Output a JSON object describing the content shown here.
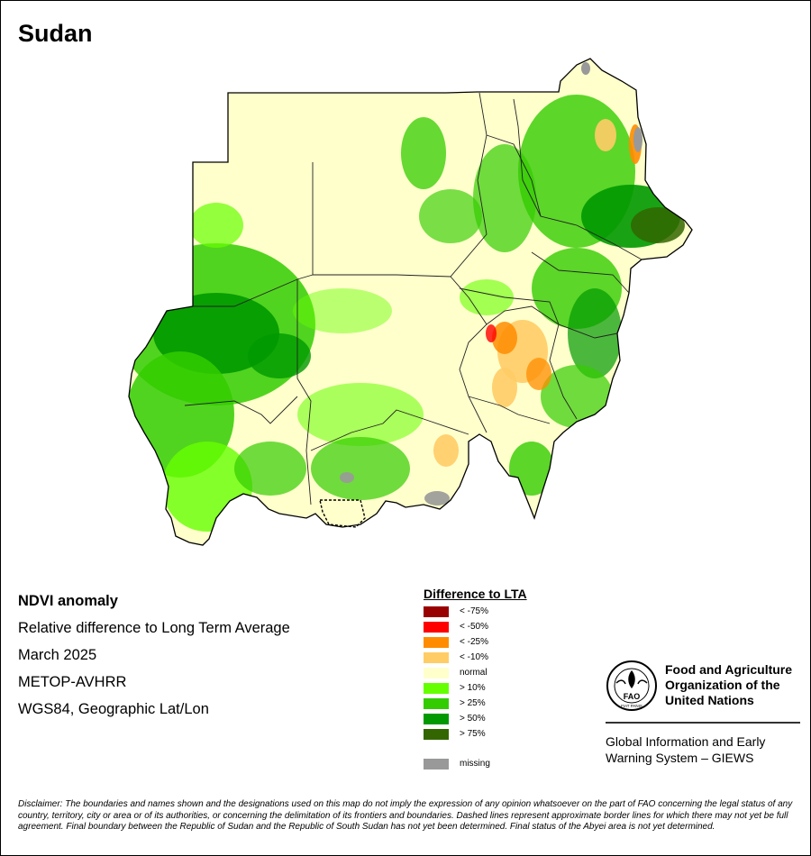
{
  "title": "Sudan",
  "info": {
    "line1": "NDVI anomaly",
    "line2": "Relative difference to Long Term Average",
    "line3": "March 2025",
    "line4": "METOP-AVHRR",
    "line5": "WGS84, Geographic Lat/Lon"
  },
  "legend": {
    "title": "Difference to LTA",
    "items": [
      {
        "label": "< -75%",
        "color": "#990000"
      },
      {
        "label": "< -50%",
        "color": "#ff0000"
      },
      {
        "label": "< -25%",
        "color": "#ff8c00"
      },
      {
        "label": "< -10%",
        "color": "#ffcc66"
      },
      {
        "label": "normal",
        "color": "#ffffcc"
      },
      {
        "label": "> 10%",
        "color": "#66ff00"
      },
      {
        "label": "> 25%",
        "color": "#33cc00"
      },
      {
        "label": "> 50%",
        "color": "#009900"
      },
      {
        "label": "> 75%",
        "color": "#336600"
      }
    ],
    "missing": {
      "label": "missing",
      "color": "#999999"
    }
  },
  "fao": {
    "name_line1": "Food and Agriculture",
    "name_line2": "Organization of the",
    "name_line3": "United Nations",
    "logo_text": "FAO",
    "logo_motto": "FIAT PANIS",
    "giews_line1": "Global Information and Early",
    "giews_line2": "Warning System – GIEWS"
  },
  "disclaimer": "Disclaimer: The boundaries and names shown and the designations used on this map do not imply the expression of any opinion whatsoever on the part of FAO concerning the legal status of any country, territory, city or area or of its authorities, or concerning the delimitation of its frontiers and boundaries. Dashed lines represent approximate border lines for which there may not yet be full agreement.  Final boundary between the Republic of Sudan and the Republic of South Sudan has not yet been determined. Final status of the Abyei area is not yet determined."
}
